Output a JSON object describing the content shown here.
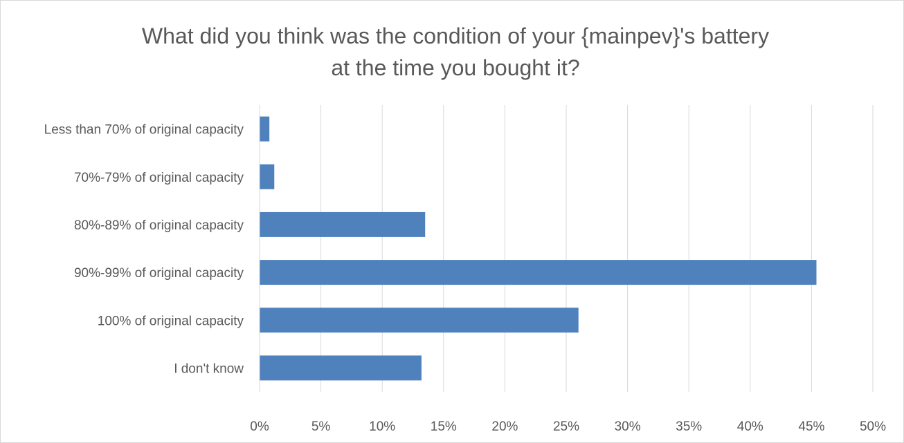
{
  "chart_data": {
    "type": "bar",
    "orientation": "horizontal",
    "title_lines": [
      "What did you think was the condition of your {mainpev}'s battery",
      "at the time you bought it?"
    ],
    "categories": [
      "Less than 70% of original capacity",
      "70%-79% of original capacity",
      "80%-89% of original capacity",
      "90%-99% of original capacity",
      "100% of original capacity",
      "I don't know"
    ],
    "values": [
      0.8,
      1.2,
      13.5,
      45.4,
      26.0,
      13.2
    ],
    "x_ticks": [
      "0%",
      "5%",
      "10%",
      "15%",
      "20%",
      "25%",
      "30%",
      "35%",
      "40%",
      "45%",
      "50%"
    ],
    "xlim": [
      0,
      50
    ],
    "xlabel": "",
    "ylabel": "",
    "grid": "vertical",
    "legend": "none",
    "bar_color": "#4f81bd",
    "grid_color": "#d9d9d9",
    "text_color": "#595959"
  }
}
